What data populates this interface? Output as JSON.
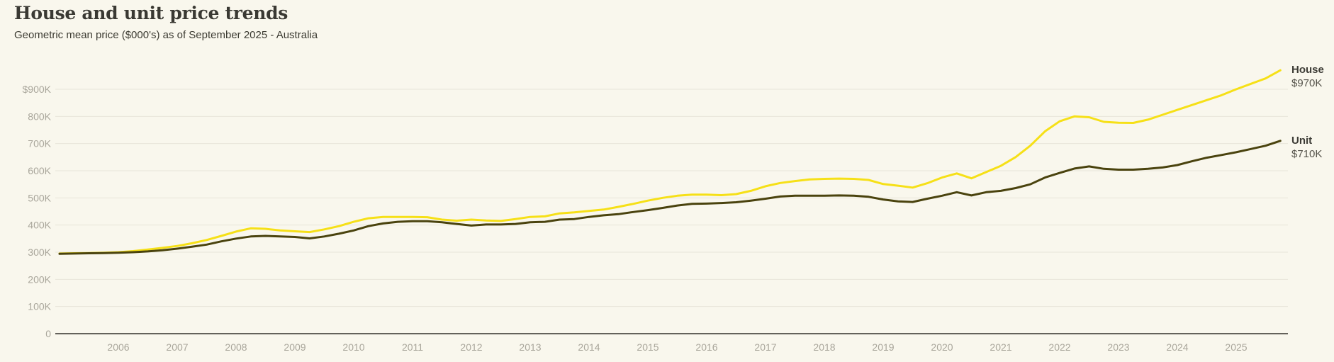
{
  "header": {
    "title": "House and unit price trends",
    "subtitle": "Geometric mean price ($000's) as of September 2025 - Australia"
  },
  "chart_data": {
    "type": "line",
    "title": "House and unit price trends",
    "subtitle": "Geometric mean price ($000's) as of September 2025 - Australia",
    "unit_of_values": "thousand AUD",
    "x_start": 2005.0,
    "x_step": 0.25,
    "x_end": 2025.75,
    "xticks": [
      2006,
      2007,
      2008,
      2009,
      2010,
      2011,
      2012,
      2013,
      2014,
      2015,
      2016,
      2017,
      2018,
      2019,
      2020,
      2021,
      2022,
      2023,
      2024,
      2025
    ],
    "yticks": [
      {
        "value": 900,
        "label": "$900K"
      },
      {
        "value": 800,
        "label": "800K"
      },
      {
        "value": 700,
        "label": "700K"
      },
      {
        "value": 600,
        "label": "600K"
      },
      {
        "value": 500,
        "label": "500K"
      },
      {
        "value": 400,
        "label": "400K"
      },
      {
        "value": 300,
        "label": "300K"
      },
      {
        "value": 200,
        "label": "200K"
      },
      {
        "value": 100,
        "label": "100K"
      },
      {
        "value": 0,
        "label": "0"
      }
    ],
    "ylim": [
      0,
      970
    ],
    "grid": "horizontal-only",
    "legend_position": "right-end-labels",
    "series": [
      {
        "key": "house",
        "label": "House",
        "end_label": "$970K",
        "end_value": 970,
        "color": "#f6e017",
        "values": [
          295,
          296,
          297,
          298,
          300,
          304,
          310,
          316,
          323,
          333,
          345,
          360,
          376,
          388,
          386,
          380,
          377,
          374,
          384,
          396,
          412,
          425,
          430,
          430,
          430,
          429,
          420,
          416,
          420,
          417,
          415,
          422,
          430,
          432,
          443,
          447,
          452,
          457,
          467,
          478,
          490,
          500,
          508,
          512,
          512,
          510,
          514,
          526,
          543,
          555,
          562,
          568,
          570,
          571,
          570,
          566,
          551,
          545,
          538,
          554,
          575,
          590,
          572,
          595,
          618,
          650,
          692,
          745,
          782,
          800,
          797,
          780,
          777,
          776,
          788,
          806,
          824,
          842,
          860,
          878,
          900,
          920,
          940,
          970
        ]
      },
      {
        "key": "unit",
        "label": "Unit",
        "end_label": "$710K",
        "end_value": 710,
        "color": "#4a430e",
        "values": [
          294,
          295,
          296,
          297,
          298,
          300,
          303,
          307,
          313,
          320,
          328,
          340,
          350,
          358,
          360,
          358,
          356,
          351,
          358,
          368,
          380,
          396,
          406,
          412,
          414,
          414,
          410,
          404,
          398,
          402,
          402,
          404,
          410,
          412,
          420,
          422,
          430,
          436,
          440,
          448,
          455,
          463,
          472,
          478,
          479,
          481,
          484,
          490,
          497,
          505,
          508,
          508,
          508,
          509,
          508,
          504,
          494,
          487,
          485,
          497,
          508,
          521,
          509,
          521,
          526,
          536,
          550,
          575,
          592,
          608,
          616,
          607,
          604,
          604,
          607,
          612,
          621,
          635,
          648,
          658,
          668,
          680,
          692,
          710
        ]
      }
    ],
    "colors": {
      "background": "#f9f7ed",
      "gridline": "#e8e5d9",
      "axis_line": "#33312b",
      "tick_text": "#a9a69b",
      "house_line": "#f6e017",
      "unit_line": "#4a430e"
    }
  }
}
